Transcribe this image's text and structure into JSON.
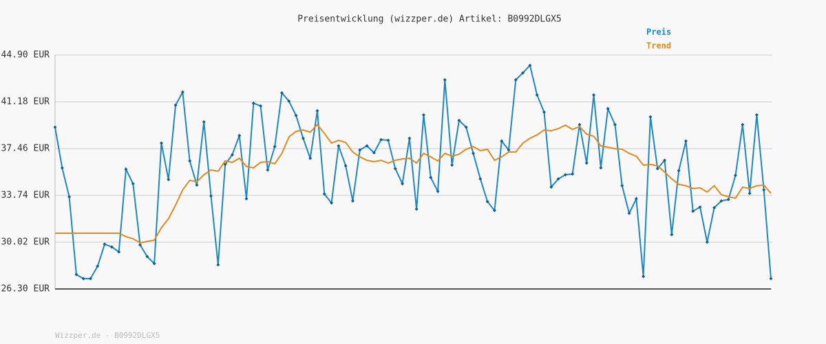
{
  "chart_data": {
    "type": "line",
    "title": "Preisentwicklung (wizzper.de) Artikel: B0992DLGX5",
    "footer": "Wizzper.de - B0992DLGX5",
    "ylim": [
      26.3,
      44.9
    ],
    "yticks": [
      {
        "value": 26.3,
        "label": "26.30 EUR"
      },
      {
        "value": 30.02,
        "label": "30.02 EUR"
      },
      {
        "value": 33.74,
        "label": "33.74 EUR"
      },
      {
        "value": 37.46,
        "label": "37.46 EUR"
      },
      {
        "value": 41.18,
        "label": "41.18 EUR"
      },
      {
        "value": 44.9,
        "label": "44.90 EUR"
      }
    ],
    "grid": true,
    "legend": "top-right",
    "series": [
      {
        "name": "Preis",
        "color": "#1f86c4",
        "markers": true,
        "values": [
          39.16,
          35.93,
          33.63,
          27.45,
          27.12,
          27.12,
          28.11,
          29.86,
          29.64,
          29.25,
          35.82,
          34.67,
          29.8,
          28.87,
          28.32,
          37.9,
          35.0,
          40.91,
          41.95,
          36.48,
          34.56,
          39.59,
          33.69,
          28.22,
          36.2,
          36.97,
          38.5,
          33.47,
          41.07,
          40.85,
          35.76,
          37.62,
          41.89,
          41.23,
          40.09,
          38.28,
          36.69,
          40.47,
          33.85,
          33.14,
          37.68,
          36.09,
          33.3,
          37.35,
          37.68,
          37.13,
          38.17,
          38.12,
          35.87,
          34.67,
          38.28,
          32.65,
          40.14,
          35.16,
          34.07,
          42.93,
          36.15,
          39.7,
          39.16,
          37.08,
          35.05,
          33.25,
          32.54,
          38.06,
          37.35,
          42.93,
          43.48,
          44.08,
          41.73,
          40.36,
          34.4,
          35.05,
          35.38,
          35.44,
          39.37,
          36.31,
          41.73,
          35.93,
          40.63,
          39.37,
          34.51,
          32.32,
          33.47,
          27.29,
          39.98,
          35.87,
          36.53,
          30.62,
          35.71,
          38.06,
          32.48,
          32.81,
          30.02,
          32.76,
          33.3,
          33.41,
          35.33,
          39.37,
          33.9,
          40.14,
          34.18,
          27.12
        ]
      },
      {
        "name": "Trend",
        "color": "#e08a1e",
        "markers": false,
        "values": [
          30.73,
          30.73,
          30.73,
          30.73,
          30.73,
          30.73,
          30.73,
          30.73,
          30.73,
          30.73,
          30.46,
          30.29,
          29.97,
          30.08,
          30.18,
          31.17,
          31.88,
          32.97,
          34.18,
          34.94,
          34.83,
          35.38,
          35.76,
          35.66,
          36.48,
          36.37,
          36.69,
          36.04,
          35.93,
          36.37,
          36.42,
          36.26,
          37.08,
          38.39,
          38.83,
          38.94,
          38.77,
          39.37,
          38.66,
          37.9,
          38.12,
          37.95,
          37.19,
          36.8,
          36.53,
          36.42,
          36.53,
          36.31,
          36.53,
          36.64,
          36.69,
          36.31,
          37.08,
          36.8,
          36.48,
          37.08,
          36.86,
          37.02,
          37.41,
          37.62,
          37.3,
          37.41,
          36.53,
          36.8,
          37.19,
          37.19,
          37.9,
          38.28,
          38.55,
          38.94,
          38.88,
          39.05,
          39.32,
          38.99,
          39.21,
          38.61,
          38.44,
          37.68,
          37.57,
          37.46,
          37.41,
          37.08,
          36.86,
          36.15,
          36.2,
          36.09,
          35.6,
          35.05,
          34.62,
          34.51,
          34.29,
          34.34,
          34.01,
          34.51,
          33.8,
          33.63,
          33.52,
          34.4,
          34.29,
          34.51,
          34.56,
          33.9
        ]
      }
    ]
  }
}
